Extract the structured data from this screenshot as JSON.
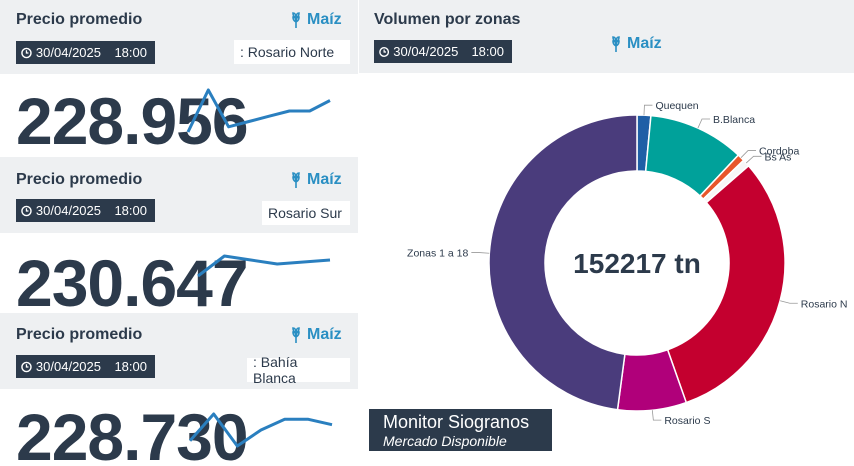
{
  "cards": [
    {
      "title": "Precio promedio",
      "product": "Maíz",
      "date": "30/04/2025",
      "time": "18:00",
      "zone": ": Rosario Norte",
      "value": "228.956",
      "trend": [
        228.6,
        229.4,
        228.7,
        228.8,
        228.9,
        229.0,
        229.0,
        229.2
      ]
    },
    {
      "title": "Precio promedio",
      "product": "Maíz",
      "date": "30/04/2025",
      "time": "18:00",
      "zone": "Rosario Sur",
      "value": "230.647",
      "trend": [
        230.4,
        230.9,
        230.8,
        230.7,
        230.75,
        230.8
      ]
    },
    {
      "title": "Precio promedio",
      "product": "Maíz",
      "date": "30/04/2025",
      "time": "18:00",
      "zone": ": Bahía Blanca",
      "value": "228.730",
      "trend": [
        228.5,
        229.0,
        228.4,
        228.7,
        228.9,
        228.9,
        228.8
      ]
    }
  ],
  "volume": {
    "title": "Volumen por zonas",
    "product": "Maíz",
    "date": "30/04/2025",
    "time": "18:00",
    "total_label": "152217 tn"
  },
  "chart_data": {
    "type": "pie",
    "title": "Volumen por zonas",
    "center_label": "152217 tn",
    "slices": [
      {
        "label": "Quequen",
        "value": 1.5,
        "color": "#1f5fa6"
      },
      {
        "label": "B.Blanca",
        "value": 10.5,
        "color": "#00a19a"
      },
      {
        "label": "Cordoba",
        "value": 0.8,
        "color": "#e8562a"
      },
      {
        "label": "Bs As",
        "value": 0.8,
        "color": "#f7f7f7"
      },
      {
        "label": "Rosario N",
        "value": 31.0,
        "color": "#c4002f"
      },
      {
        "label": "Rosario S",
        "value": 7.5,
        "color": "#b0007a"
      },
      {
        "label": "Zonas 1 a 18",
        "value": 47.9,
        "color": "#4a3c7c"
      }
    ]
  },
  "footer": {
    "title": "Monitor Siogranos",
    "subtitle": "Mercado Disponible"
  }
}
